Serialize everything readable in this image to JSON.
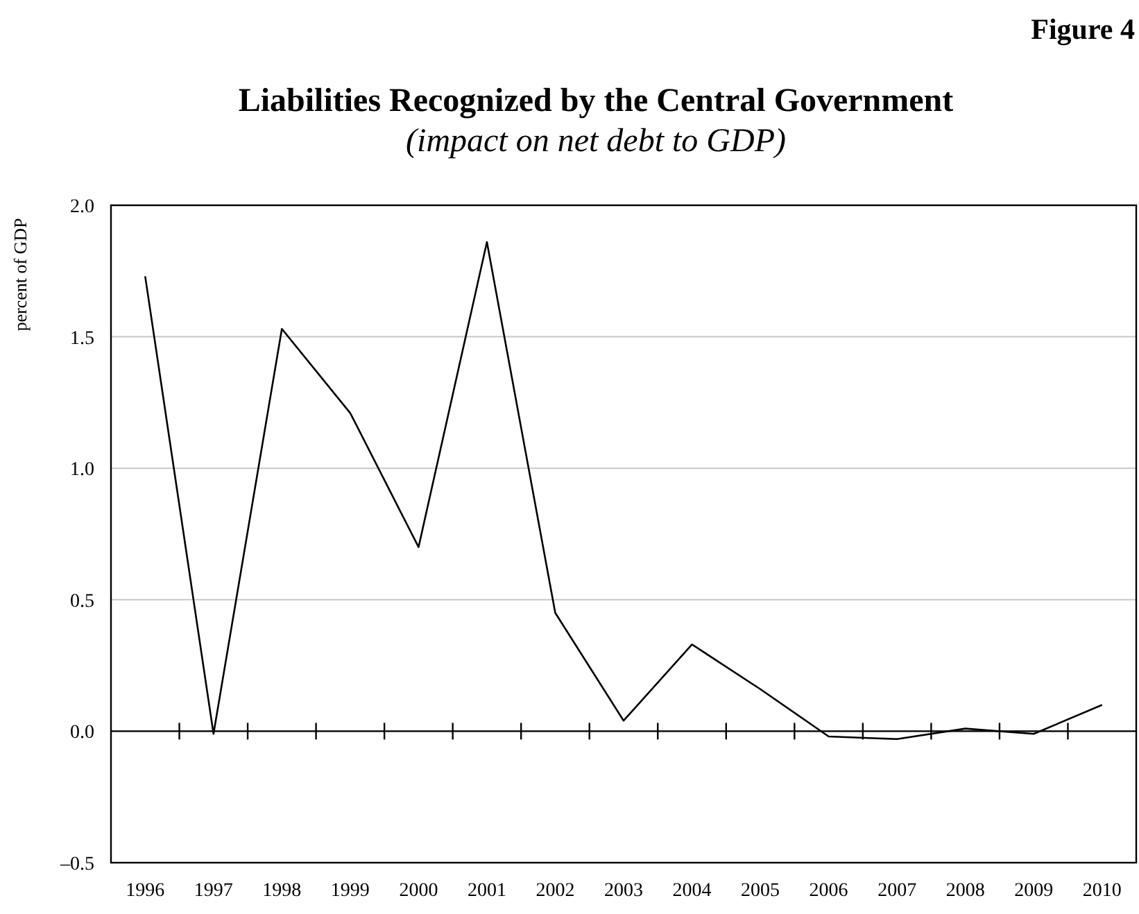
{
  "chart_data": {
    "type": "line",
    "title": "Liabilities Recognized by the Central Government",
    "subtitle": "(impact on net debt to GDP)",
    "ylabel": "percent of GDP",
    "annotations": [
      "Figure 4"
    ],
    "categories": [
      "1996",
      "1997",
      "1998",
      "1999",
      "2000",
      "2001",
      "2002",
      "2003",
      "2004",
      "2005",
      "2006",
      "2007",
      "2008",
      "2009",
      "2010"
    ],
    "series": [
      {
        "color": "#000000",
        "values": [
          1.73,
          -0.01,
          1.53,
          1.21,
          0.7,
          1.86,
          0.45,
          0.04,
          0.33,
          0.16,
          -0.02,
          -0.03,
          0.01,
          -0.01,
          0.1
        ]
      }
    ],
    "ylim": [
      -0.5,
      2.0
    ],
    "yticks": [
      {
        "value": -0.5,
        "label": "–0.5"
      },
      {
        "value": 0,
        "label": "0.0"
      },
      {
        "value": 0.5,
        "label": "0.5"
      },
      {
        "value": 1,
        "label": "1.0"
      },
      {
        "value": 1.5,
        "label": "1.5"
      },
      {
        "value": 2,
        "label": "2.0"
      }
    ],
    "grid": "y",
    "marker": "none",
    "line_style": "solid"
  }
}
